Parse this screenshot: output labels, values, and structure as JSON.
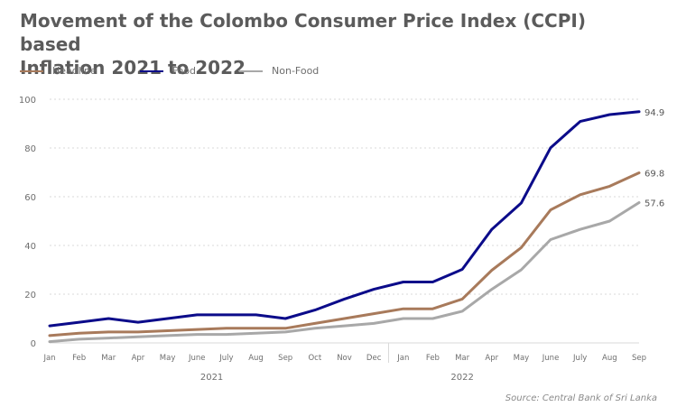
{
  "chart_data": {
    "type": "line",
    "title": "Movement of the Colombo Consumer Price Index (CCPI) based Inflation 2021 to 2022",
    "title_line1": "Movement of the Colombo Consumer Price Index (CCPI) based",
    "title_line2": "Inflation 2021 to 2022",
    "categories": [
      "Jan",
      "Feb",
      "Mar",
      "Apr",
      "May",
      "June",
      "July",
      "Aug",
      "Sep",
      "Oct",
      "Nov",
      "Dec",
      "Jan",
      "Feb",
      "Mar",
      "Apr",
      "May",
      "June",
      "July",
      "Aug",
      "Sep"
    ],
    "year_labels": [
      {
        "label": "2021",
        "center_index": 5.5
      },
      {
        "label": "2022",
        "center_index": 14
      }
    ],
    "year_divider_index": 11.5,
    "ylim": [
      0,
      100
    ],
    "yticks": [
      0,
      20,
      40,
      60,
      80,
      100
    ],
    "ytick_labels": [
      "0",
      "20",
      "40",
      "60",
      "80",
      "100"
    ],
    "xlabel": "",
    "ylabel": "",
    "grid": true,
    "legend_position": "top-left",
    "series": [
      {
        "name": "Headline",
        "color": "#a87a5b",
        "values": [
          3.0,
          4.0,
          4.5,
          4.5,
          5.0,
          5.5,
          6.0,
          6.0,
          6.0,
          8.0,
          10.0,
          12.0,
          14.0,
          14.0,
          18.0,
          29.8,
          39.1,
          54.6,
          60.8,
          64.3,
          69.8
        ],
        "end_label": "69.8"
      },
      {
        "name": "Food",
        "color": "#0b0b8a",
        "values": [
          7.0,
          8.5,
          10.0,
          8.5,
          10.0,
          11.5,
          11.5,
          11.5,
          10.0,
          13.5,
          18.0,
          22.0,
          25.0,
          25.0,
          30.2,
          46.6,
          57.4,
          80.1,
          90.9,
          93.7,
          94.9
        ],
        "end_label": "94.9"
      },
      {
        "name": "Non-Food",
        "color": "#a8a8a8",
        "values": [
          0.5,
          1.5,
          2.0,
          2.5,
          3.0,
          3.5,
          3.5,
          4.0,
          4.5,
          6.0,
          7.0,
          8.0,
          10.0,
          10.0,
          13.0,
          22.0,
          30.0,
          42.4,
          46.6,
          50.0,
          57.6
        ],
        "end_label": "57.6"
      }
    ]
  },
  "source": "Source: Central Bank of Sri Lanka",
  "colors": {
    "grid": "#d9d9d9",
    "axis_text": "#6e6e6e",
    "title": "#5b5b5b"
  }
}
